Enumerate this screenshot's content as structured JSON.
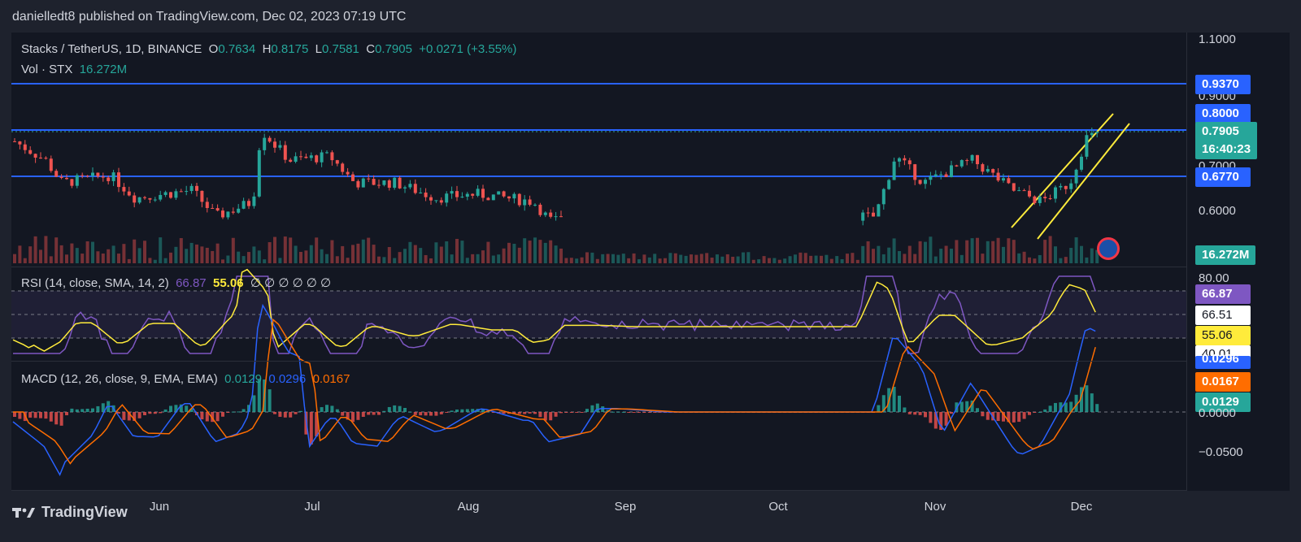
{
  "header": {
    "publisher_text": "danielledt8 published on TradingView.com, Dec 02, 2023 07:19 UTC"
  },
  "legend": {
    "symbol": "Stacks / TetherUS, 1D, BINANCE",
    "o_label": "O",
    "o_value": "0.7634",
    "h_label": "H",
    "h_value": "0.8175",
    "l_label": "L",
    "l_value": "0.7581",
    "c_label": "C",
    "c_value": "0.7905",
    "change": "+0.0271 (+3.55%)",
    "vol_label": "Vol · STX",
    "vol_value": "16.272M"
  },
  "rsi_legend": {
    "label": "RSI (14, close, SMA, 14, 2)",
    "rsi_value": "66.87",
    "sma_value": "55.06",
    "placeholders": "∅ ∅ ∅ ∅ ∅ ∅"
  },
  "macd_legend": {
    "label": "MACD (12, 26, close, 9, EMA, EMA)",
    "hist_value": "0.0129",
    "macd_value": "0.0296",
    "signal_value": "0.0167"
  },
  "price_scale": {
    "ticks": [
      "1.1000",
      "0.9000",
      "0.7000",
      "0.6000"
    ],
    "badges": {
      "line_top": "0.9370",
      "line_mid": "0.8000",
      "last_price": "0.7905",
      "countdown": "16:40:23",
      "line_low": "0.6770",
      "volume": "16.272M"
    }
  },
  "rsi_scale": {
    "tick": "80.00",
    "badges": {
      "rsi": "66.87",
      "mid": "66.51",
      "sma": "55.06",
      "low": "40.01"
    }
  },
  "macd_scale": {
    "ticks": [
      "0.0000",
      "−0.0500"
    ],
    "badges": {
      "macd": "0.0296",
      "signal": "0.0167",
      "hist": "0.0129"
    }
  },
  "time_axis": {
    "labels": [
      "Jun",
      "Jul",
      "Aug",
      "Sep",
      "Oct",
      "Nov",
      "Dec"
    ]
  },
  "footer": {
    "brand": "TradingView"
  },
  "colors": {
    "background": "#131722",
    "up": "#26a69a",
    "down": "#ef5350",
    "hline": "#2962ff",
    "channel": "#ffeb3b",
    "rsi_line": "#7e57c2",
    "rsi_sma": "#ffeb3b",
    "macd_line": "#2962ff",
    "signal_line": "#ff6d00"
  },
  "chart_data": {
    "type": "candlestick",
    "title": "Stacks / TetherUS, 1D, BINANCE",
    "x_range": [
      "May 2023",
      "Dec 02 2023"
    ],
    "ylim": [
      0.55,
      1.1
    ],
    "horizontal_lines": [
      0.937,
      0.8,
      0.677
    ],
    "last": {
      "open": 0.7634,
      "high": 0.8175,
      "low": 0.7581,
      "close": 0.7905,
      "change": 0.0271,
      "change_pct": 3.55,
      "volume": "16.272M"
    },
    "rsi": {
      "value": 66.87,
      "sma": 55.06,
      "bands": [
        80,
        66.51,
        40.01
      ]
    },
    "macd": {
      "macd": 0.0296,
      "signal": 0.0167,
      "histogram": 0.0129,
      "ylim": [
        -0.06,
        0.04
      ]
    }
  }
}
